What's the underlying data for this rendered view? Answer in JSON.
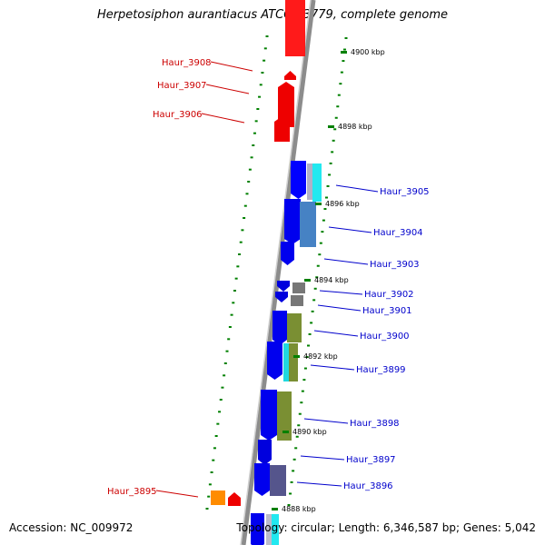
{
  "title": "Herpetosiphon aurantiacus ATCC 23779, complete genome",
  "footer": {
    "accession": "Accession: NC_009972",
    "topology": "Topology: circular; Length: 6,346,587 bp; Genes: 5,042"
  },
  "colors": {
    "reverse_strand_label": "#cc0000",
    "forward_strand_label": "#0000cc",
    "tick": "#008000",
    "backbone": "#8c8c8c"
  },
  "scale_ticks": [
    "4900 kbp",
    "4898 kbp",
    "4896 kbp",
    "4894 kbp",
    "4892 kbp",
    "4890 kbp",
    "4888 kbp"
  ],
  "gene_labels": [
    {
      "name": "Haur_3908",
      "strand": "reverse"
    },
    {
      "name": "Haur_3907",
      "strand": "reverse"
    },
    {
      "name": "Haur_3906",
      "strand": "reverse"
    },
    {
      "name": "Haur_3905",
      "strand": "forward"
    },
    {
      "name": "Haur_3904",
      "strand": "forward"
    },
    {
      "name": "Haur_3903",
      "strand": "forward"
    },
    {
      "name": "Haur_3902",
      "strand": "forward"
    },
    {
      "name": "Haur_3901",
      "strand": "forward"
    },
    {
      "name": "Haur_3900",
      "strand": "forward"
    },
    {
      "name": "Haur_3899",
      "strand": "forward"
    },
    {
      "name": "Haur_3898",
      "strand": "forward"
    },
    {
      "name": "Haur_3897",
      "strand": "forward"
    },
    {
      "name": "Haur_3896",
      "strand": "forward"
    },
    {
      "name": "Haur_3895",
      "strand": "reverse"
    }
  ]
}
